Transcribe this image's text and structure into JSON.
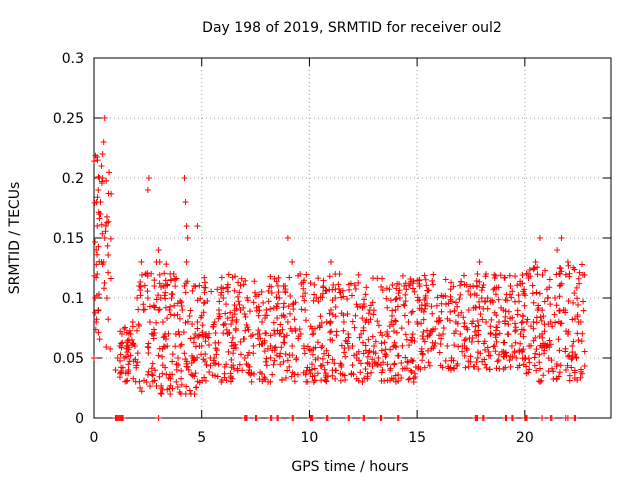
{
  "chart_data": {
    "type": "scatter",
    "title": "Day 198 of 2019, SRMTID for receiver oul2",
    "xlabel": "GPS time / hours",
    "ylabel": "SRMTID / TECUs",
    "xlim": [
      0,
      24
    ],
    "ylim": [
      0,
      0.3
    ],
    "x_ticks": [
      0,
      5,
      10,
      15,
      20
    ],
    "x_tick_labels": [
      "0",
      "5",
      "10",
      "15",
      "20"
    ],
    "y_ticks": [
      0,
      0.05,
      0.1,
      0.15,
      0.2,
      0.25,
      0.3
    ],
    "y_tick_labels": [
      "0",
      "0.05",
      "0.1",
      "0.15",
      "0.2",
      "0.25",
      "0.3"
    ],
    "grid": true,
    "marker": "plus",
    "color": "#ff0000",
    "series": [
      {
        "name": "SRMTID",
        "x": [
          0.0,
          0.05,
          0.1,
          0.15,
          0.2,
          0.25,
          0.3,
          0.35,
          0.4,
          0.45,
          0.5,
          0.55,
          0.6,
          0.1,
          0.2,
          0.3,
          0.4,
          0.5,
          0.15,
          0.25,
          0.35,
          0.45,
          1.0,
          1.1,
          1.2,
          1.3,
          1.4,
          1.5,
          1.6,
          1.7,
          1.8,
          1.9,
          2.0,
          2.1,
          2.2,
          2.3,
          2.4,
          2.5,
          2.6,
          2.7,
          2.8,
          2.9,
          3.0,
          3.1,
          3.2,
          3.3,
          3.4,
          3.5,
          3.6,
          3.7,
          3.8,
          3.9,
          4.0,
          4.1,
          4.2,
          4.3,
          4.4,
          4.5,
          4.6,
          4.7,
          4.8,
          4.9,
          5.0,
          5.2,
          5.4,
          5.6,
          5.8,
          6.0,
          6.2,
          6.4,
          6.6,
          6.8,
          7.0,
          7.2,
          7.4,
          7.6,
          7.8,
          8.0,
          8.2,
          8.4,
          8.6,
          8.8,
          9.0,
          9.2,
          9.4,
          9.6,
          9.8,
          10.0,
          10.2,
          10.4,
          10.6,
          10.8,
          11.0,
          11.2,
          11.4,
          11.6,
          11.8,
          12.0,
          12.2,
          12.4,
          12.6,
          12.8,
          13.0,
          13.2,
          13.4,
          13.6,
          13.8,
          14.0,
          14.2,
          14.4,
          14.6,
          14.8,
          15.0,
          15.2,
          15.4,
          15.6,
          15.8,
          16.0,
          16.2,
          16.4,
          16.6,
          16.8,
          17.0,
          17.2,
          17.4,
          17.6,
          17.8,
          18.0,
          18.2,
          18.4,
          18.6,
          18.8,
          19.0,
          19.2,
          19.4,
          19.6,
          19.8,
          20.0,
          20.2,
          20.4,
          20.6,
          20.8,
          21.0,
          21.2,
          21.4,
          21.6,
          21.8,
          22.0,
          22.2,
          22.4,
          22.6,
          2.5,
          2.55,
          3.0,
          3.05,
          4.2,
          4.25,
          4.3,
          4.35,
          4.8,
          9.0,
          9.2,
          11.0,
          11.2,
          17.9,
          18.2,
          20.5,
          20.7,
          21.5,
          21.7,
          22.0,
          22.5
        ],
        "y": [
          0.05,
          0.1,
          0.14,
          0.16,
          0.19,
          0.2,
          0.17,
          0.13,
          0.2,
          0.23,
          0.25,
          0.16,
          0.1,
          0.08,
          0.09,
          0.18,
          0.22,
          0.15,
          0.12,
          0.17,
          0.21,
          0.13,
          0.04,
          0.05,
          0.06,
          0.07,
          0.05,
          0.06,
          0.04,
          0.07,
          0.08,
          0.06,
          0.1,
          0.11,
          0.13,
          0.09,
          0.12,
          0.1,
          0.08,
          0.07,
          0.11,
          0.13,
          0.09,
          0.1,
          0.08,
          0.07,
          0.06,
          0.09,
          0.1,
          0.12,
          0.07,
          0.05,
          0.06,
          0.09,
          0.11,
          0.13,
          0.04,
          0.02,
          0.05,
          0.07,
          0.08,
          0.06,
          0.06,
          0.07,
          0.05,
          0.08,
          0.09,
          0.1,
          0.07,
          0.06,
          0.08,
          0.09,
          0.05,
          0.04,
          0.06,
          0.07,
          0.08,
          0.09,
          0.06,
          0.07,
          0.1,
          0.11,
          0.08,
          0.06,
          0.05,
          0.07,
          0.09,
          0.04,
          0.03,
          0.05,
          0.06,
          0.08,
          0.09,
          0.1,
          0.12,
          0.08,
          0.07,
          0.06,
          0.05,
          0.07,
          0.08,
          0.09,
          0.06,
          0.05,
          0.04,
          0.07,
          0.08,
          0.09,
          0.1,
          0.11,
          0.08,
          0.07,
          0.08,
          0.09,
          0.1,
          0.07,
          0.06,
          0.08,
          0.07,
          0.06,
          0.05,
          0.08,
          0.07,
          0.06,
          0.09,
          0.11,
          0.12,
          0.1,
          0.08,
          0.07,
          0.06,
          0.08,
          0.09,
          0.07,
          0.06,
          0.05,
          0.07,
          0.05,
          0.06,
          0.08,
          0.09,
          0.07,
          0.06,
          0.08,
          0.1,
          0.12,
          0.09,
          0.07,
          0.06,
          0.05,
          0.08,
          0.19,
          0.2,
          0.14,
          0.13,
          0.2,
          0.18,
          0.16,
          0.15,
          0.16,
          0.15,
          0.13,
          0.13,
          0.12,
          0.13,
          0.12,
          0.13,
          0.15,
          0.14,
          0.15,
          0.13,
          0.08
        ]
      }
    ],
    "zero_points_x": [
      1.0,
      1.05,
      1.1,
      1.15,
      1.2,
      1.25,
      1.3,
      1.35,
      3.0,
      7.0,
      7.05,
      7.1,
      7.5,
      7.55,
      8.2,
      8.25,
      8.5,
      8.55,
      9.2,
      9.25,
      10.05,
      10.1,
      10.15,
      10.8,
      10.85,
      11.8,
      11.85,
      12.5,
      12.55,
      13.3,
      13.35,
      14.1,
      14.15,
      17.7,
      17.75,
      17.8,
      18.05,
      18.1,
      19.1,
      19.15,
      19.4,
      19.45,
      20.0,
      20.05,
      20.1,
      20.8,
      21.2,
      21.25,
      21.9,
      22.0,
      22.3,
      22.35
    ]
  }
}
